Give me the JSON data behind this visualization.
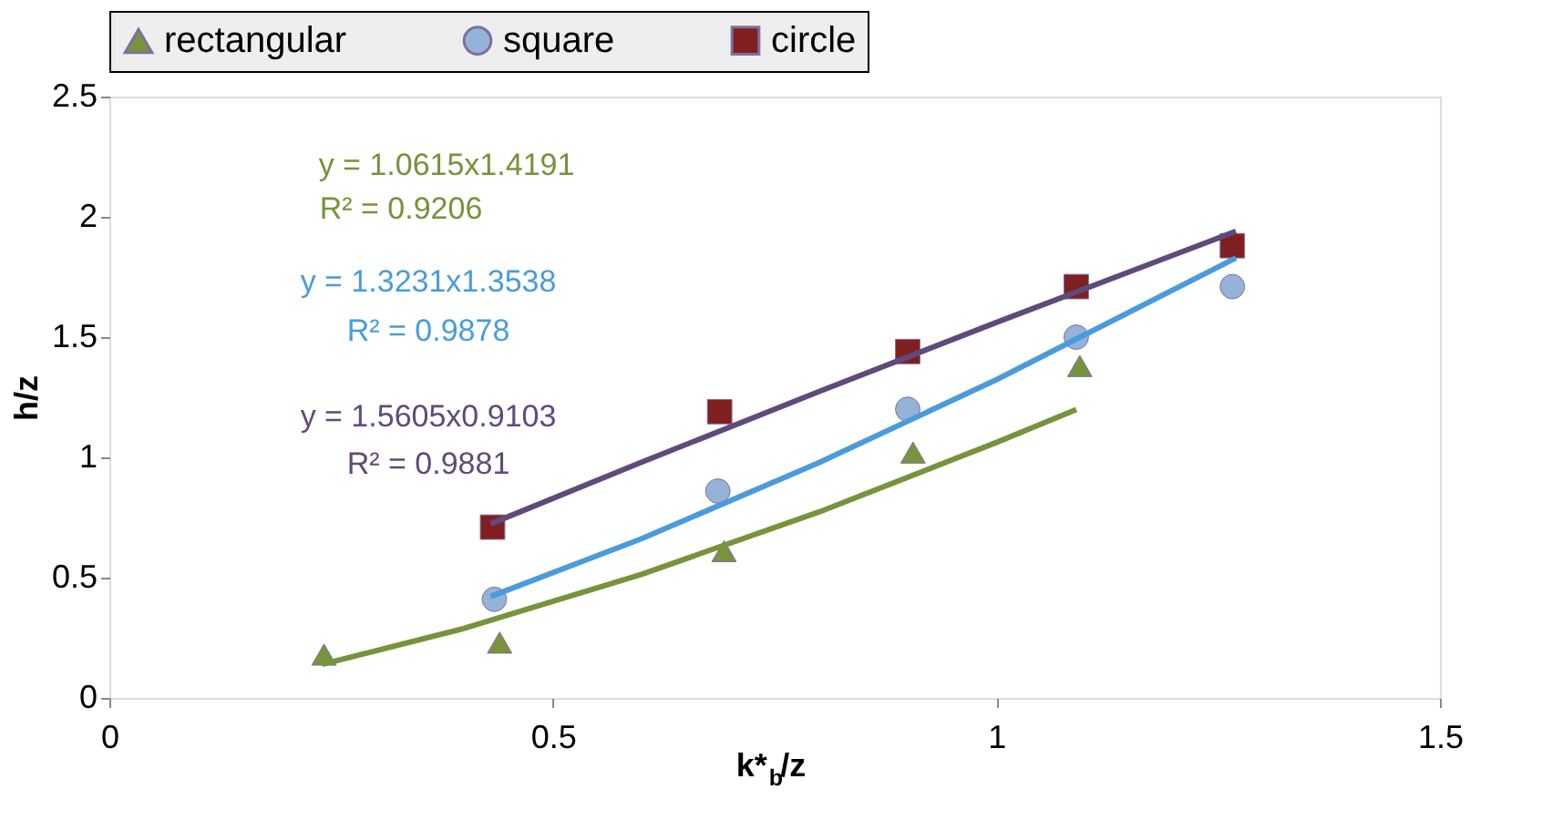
{
  "chart_data": {
    "type": "scatter",
    "xlabel": "k*$_{b}$/z",
    "ylabel": "h/z",
    "xlim": [
      0,
      1.5
    ],
    "xticks": [
      0,
      0.5,
      1,
      1.5
    ],
    "ylim": [
      0,
      2.5
    ],
    "yticks": [
      0,
      0.5,
      1,
      1.5,
      2,
      2.5
    ],
    "grid": false,
    "legend": "top",
    "series": [
      {
        "name": "rectangular",
        "color": "#77933c",
        "marker": "triangle",
        "x": [
          0.242,
          0.44,
          0.693,
          0.906,
          1.094
        ],
        "values": [
          0.18,
          0.23,
          0.61,
          1.02,
          1.38
        ]
      },
      {
        "name": "square",
        "color": "#95b3d7",
        "marker": "circle",
        "x": [
          0.434,
          0.686,
          0.9,
          1.09,
          1.266
        ],
        "values": [
          0.41,
          0.86,
          1.2,
          1.5,
          1.71
        ]
      },
      {
        "name": "circle",
        "color": "#7f1f1f",
        "marker": "square",
        "x": [
          0.432,
          0.688,
          0.9,
          1.09,
          1.266
        ],
        "values": [
          0.71,
          1.19,
          1.44,
          1.71,
          1.88
        ]
      },
      {
        "type": "line",
        "color": "#77933c",
        "marker": "none",
        "x": [
          0.24,
          0.4,
          0.6,
          0.8,
          1.0,
          1.09
        ],
        "values": [
          0.14,
          0.289,
          0.514,
          0.773,
          1.062,
          1.199
        ]
      },
      {
        "type": "line",
        "color": "#4a9bdc",
        "marker": "none",
        "x": [
          0.43,
          0.6,
          0.8,
          1.0,
          1.27
        ],
        "values": [
          0.422,
          0.662,
          0.978,
          1.323,
          1.829
        ]
      },
      {
        "type": "line",
        "color": "#604a7b",
        "marker": "none",
        "x": [
          0.43,
          0.6,
          0.8,
          1.0,
          1.27
        ],
        "values": [
          0.724,
          0.98,
          1.274,
          1.561,
          1.94
        ]
      }
    ],
    "annotations": [
      "y = 1.0615x1.4191",
      "R² = 0.9206",
      "y = 1.3231x1.3538",
      "R² = 0.9878",
      "y = 1.5605x0.9103",
      "R² = 0.9881"
    ]
  }
}
